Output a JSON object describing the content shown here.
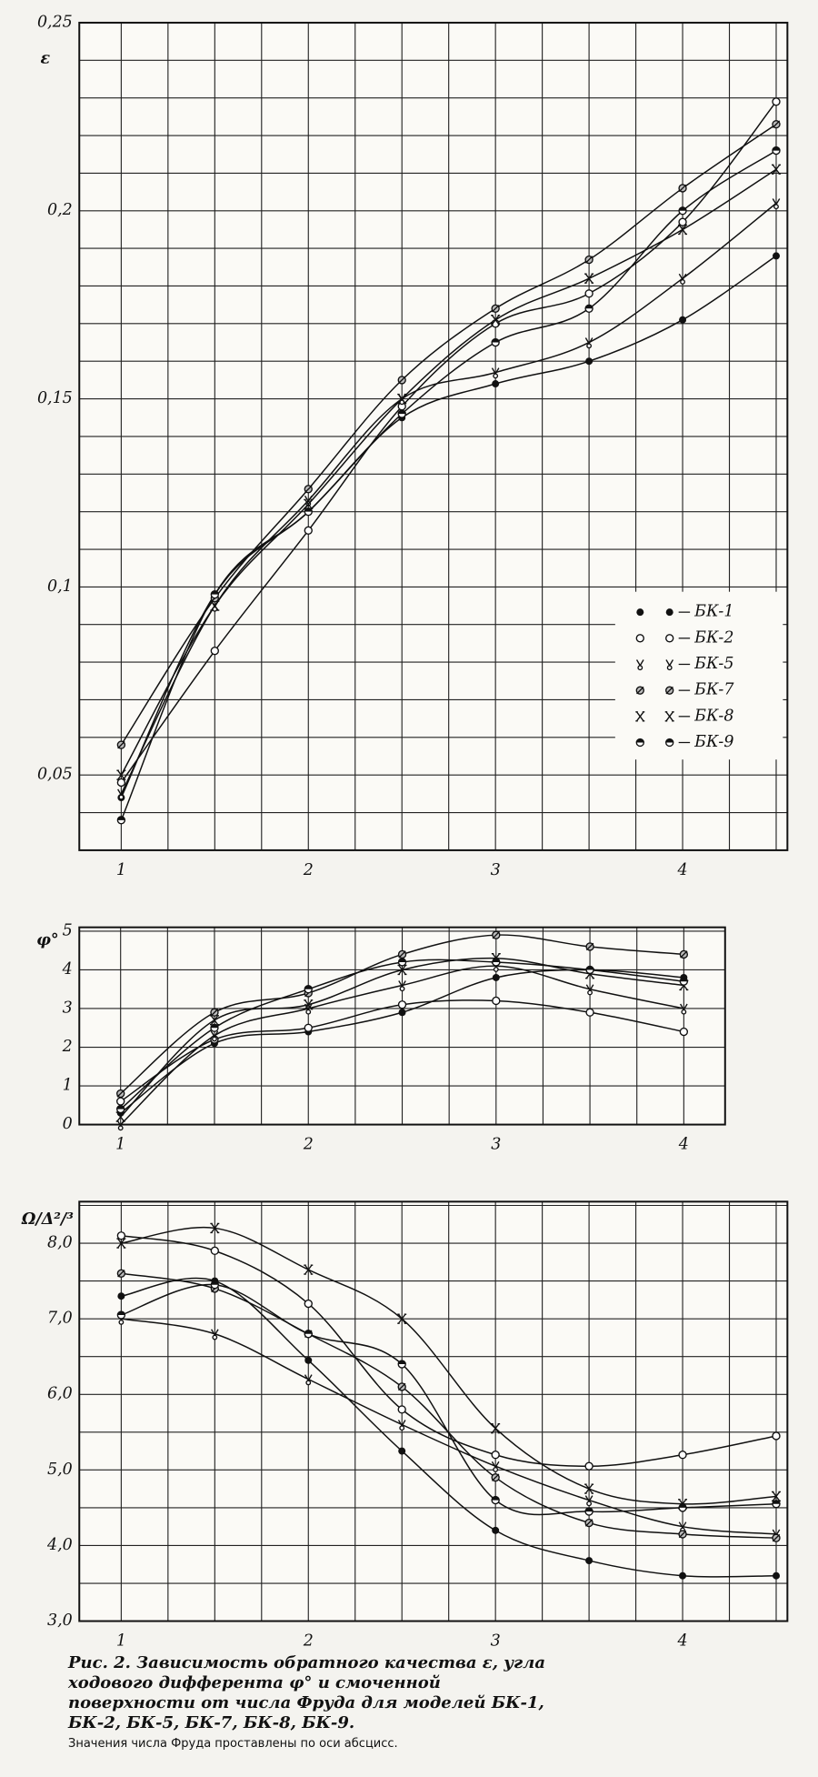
{
  "chart_data": [
    {
      "type": "line",
      "y_label": "ε",
      "color": "#111111",
      "x": [
        1,
        1.5,
        2,
        2.5,
        3,
        3.5,
        4,
        4.5
      ],
      "xlim": [
        0.776,
        4.56
      ],
      "ylim": [
        0.03,
        0.25
      ],
      "xticks": [
        1,
        2,
        3,
        4
      ],
      "yticks": [
        {
          "value": 0.05,
          "label": "0,05"
        },
        {
          "value": 0.1,
          "label": "0,1"
        },
        {
          "value": 0.15,
          "label": "0,15"
        },
        {
          "value": 0.2,
          "label": "0,2"
        },
        {
          "value": 0.25,
          "label": "0,25"
        }
      ],
      "xgrid": [
        1,
        1.25,
        1.5,
        1.75,
        2,
        2.25,
        2.5,
        2.75,
        3,
        3.25,
        3.5,
        3.75,
        4,
        4.25,
        4.5
      ],
      "ygrid": [
        0.04,
        0.05,
        0.06,
        0.07,
        0.08,
        0.09,
        0.1,
        0.11,
        0.12,
        0.13,
        0.14,
        0.15,
        0.16,
        0.17,
        0.18,
        0.19,
        0.2,
        0.21,
        0.22,
        0.23,
        0.24
      ],
      "legend": "right",
      "series": [
        {
          "name": "БК-1",
          "marker": "filled",
          "values": [
            0.044,
            0.098,
            0.12,
            0.145,
            0.154,
            0.16,
            0.171,
            0.188
          ]
        },
        {
          "name": "БК-2",
          "marker": "open",
          "values": [
            0.048,
            0.083,
            0.115,
            0.148,
            0.17,
            0.178,
            0.197,
            0.229
          ]
        },
        {
          "name": "БК-5",
          "marker": "fork",
          "values": [
            0.045,
            0.095,
            0.123,
            0.15,
            0.157,
            0.165,
            0.182,
            0.202
          ]
        },
        {
          "name": "БК-7",
          "marker": "slashed",
          "values": [
            0.058,
            0.097,
            0.126,
            0.155,
            0.174,
            0.187,
            0.206,
            0.223
          ]
        },
        {
          "name": "БК-8",
          "marker": "cross",
          "values": [
            0.05,
            0.095,
            0.122,
            0.15,
            0.171,
            0.182,
            0.195,
            0.211
          ]
        },
        {
          "name": "БК-9",
          "marker": "half",
          "values": [
            0.038,
            0.098,
            0.12,
            0.146,
            0.165,
            0.174,
            0.2,
            0.216
          ]
        }
      ]
    },
    {
      "type": "line",
      "y_label": "φ°",
      "color": "#111111",
      "x": [
        1,
        1.5,
        2,
        2.5,
        3,
        3.5,
        4
      ],
      "xlim": [
        0.78,
        4.22
      ],
      "ylim": [
        0,
        5.1
      ],
      "xticks": [
        1,
        2,
        3,
        4
      ],
      "yticks": [
        0,
        1,
        2,
        3,
        4,
        5
      ],
      "xgrid": [
        1,
        1.25,
        1.5,
        1.75,
        2,
        2.25,
        2.5,
        2.75,
        3,
        3.25,
        3.5,
        3.75,
        4
      ],
      "ygrid": [
        1,
        2,
        3,
        4,
        5
      ],
      "series": [
        {
          "marker": "filled",
          "values": [
            0.3,
            2.1,
            2.4,
            2.9,
            3.8,
            4.0,
            3.8
          ]
        },
        {
          "marker": "open",
          "values": [
            0.6,
            2.2,
            2.5,
            3.1,
            3.2,
            2.9,
            2.4
          ]
        },
        {
          "marker": "fork",
          "values": [
            0,
            2.3,
            3.0,
            3.6,
            4.1,
            3.5,
            3.0
          ]
        },
        {
          "marker": "slashed",
          "values": [
            0.8,
            2.9,
            3.4,
            4.4,
            4.9,
            4.6,
            4.4
          ]
        },
        {
          "marker": "cross",
          "values": [
            0.2,
            2.7,
            3.1,
            4.0,
            4.3,
            3.9,
            3.6
          ]
        },
        {
          "marker": "half",
          "values": [
            0.4,
            2.5,
            3.5,
            4.2,
            4.2,
            4.0,
            3.7
          ]
        }
      ]
    },
    {
      "type": "line",
      "y_label": "Ω/Δ²/³",
      "color": "#111111",
      "x": [
        1,
        1.5,
        2,
        2.5,
        3,
        3.5,
        4,
        4.5
      ],
      "xlim": [
        0.776,
        4.56
      ],
      "ylim": [
        3.0,
        8.55
      ],
      "xticks": [
        1,
        2,
        3,
        4
      ],
      "yticks": [
        {
          "value": 3,
          "label": "3,0"
        },
        {
          "value": 4,
          "label": "4,0"
        },
        {
          "value": 5,
          "label": "5,0"
        },
        {
          "value": 6,
          "label": "6,0"
        },
        {
          "value": 7,
          "label": "7,0"
        },
        {
          "value": 8,
          "label": "8,0"
        }
      ],
      "xgrid": [
        1,
        1.25,
        1.5,
        1.75,
        2,
        2.25,
        2.5,
        2.75,
        3,
        3.25,
        3.5,
        3.75,
        4,
        4.25,
        4.5
      ],
      "ygrid": [
        3.5,
        4,
        4.5,
        5,
        5.5,
        6,
        6.5,
        7,
        7.5,
        8,
        8.5
      ],
      "series": [
        {
          "marker": "filled",
          "values": [
            7.3,
            7.5,
            6.45,
            5.25,
            4.2,
            3.8,
            3.6,
            3.6
          ]
        },
        {
          "marker": "open",
          "values": [
            8.1,
            7.9,
            7.2,
            5.8,
            5.2,
            5.05,
            5.2,
            5.45
          ]
        },
        {
          "marker": "fork",
          "values": [
            7.0,
            6.8,
            6.2,
            5.6,
            5.05,
            4.6,
            4.25,
            4.15
          ]
        },
        {
          "marker": "slashed",
          "values": [
            7.6,
            7.4,
            6.8,
            6.1,
            4.9,
            4.3,
            4.15,
            4.1
          ]
        },
        {
          "marker": "cross",
          "values": [
            8.0,
            8.2,
            7.65,
            7.0,
            5.55,
            4.75,
            4.55,
            4.65
          ]
        },
        {
          "marker": "half",
          "values": [
            7.05,
            7.45,
            6.8,
            6.4,
            4.6,
            4.45,
            4.5,
            4.55
          ]
        }
      ]
    }
  ],
  "caption": "Рис. 2. Зависимость обратного качества ε, угла ходового дифферента φ° и смоченной поверхности от числа Фруда для моделей БК-1, БК-2, БК-5, БК-7, БК-8, БК-9.",
  "note": "Значения числа Фруда проставлены по оси абсцисс."
}
